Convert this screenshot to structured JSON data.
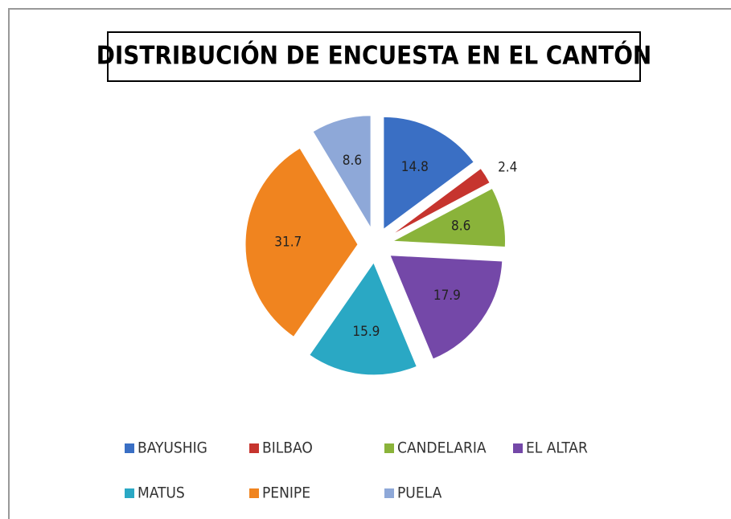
{
  "chart_data": {
    "type": "pie",
    "title": "DISTRIBUCIÓN DE ENCUESTA EN EL CANTÓN",
    "categories": [
      "BAYUSHIG",
      "BILBAO",
      "CANDELARIA",
      "EL ALTAR",
      "MATUS",
      "PENIPE",
      "PUELA"
    ],
    "values": [
      14.8,
      2.4,
      8.6,
      17.9,
      15.9,
      31.7,
      8.6
    ],
    "colors": [
      "#3a6fc4",
      "#c6342e",
      "#8ab33a",
      "#7448a8",
      "#2aa8c4",
      "#f0841f",
      "#8ea8d8"
    ],
    "legend": "bottom"
  }
}
